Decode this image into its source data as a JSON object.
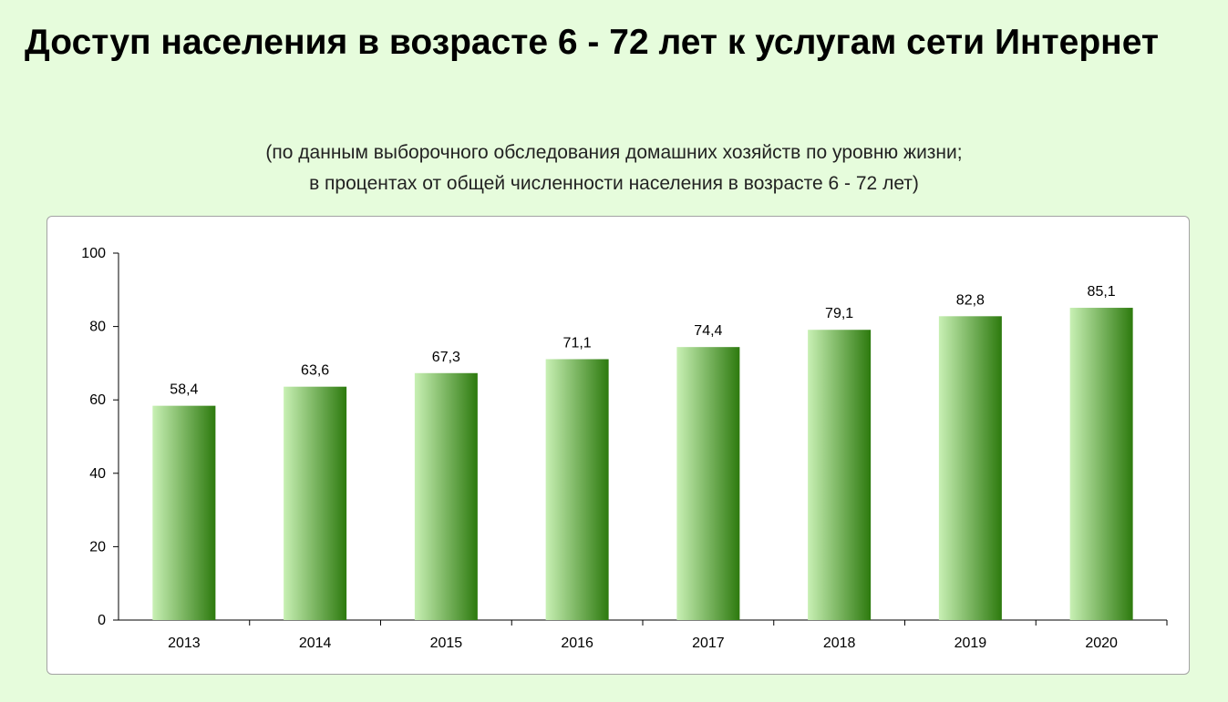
{
  "title": "Доступ населения в возрасте 6 - 72 лет к услугам сети Интернет",
  "subtitle": {
    "line1": "(по данным выборочного обследования домашних хозяйств по уровню жизни;",
    "line2": "в процентах от общей численности населения в возрасте 6 - 72 лет)"
  },
  "colors": {
    "background": "#e6fcdc",
    "bar_light": "#c8f0b4",
    "bar_dark": "#2d7a0e"
  },
  "chart_data": {
    "type": "bar",
    "categories": [
      "2013",
      "2014",
      "2015",
      "2016",
      "2017",
      "2018",
      "2019",
      "2020"
    ],
    "values": [
      58.4,
      63.6,
      67.3,
      71.1,
      74.4,
      79.1,
      82.8,
      85.1
    ],
    "value_labels": [
      "58,4",
      "63,6",
      "67,3",
      "71,1",
      "74,4",
      "79,1",
      "82,8",
      "85,1"
    ],
    "yticks": [
      0,
      20,
      40,
      60,
      80,
      100
    ],
    "ylim": [
      0,
      100
    ],
    "grid": false,
    "legend": "none",
    "xlabel": "",
    "ylabel": ""
  }
}
